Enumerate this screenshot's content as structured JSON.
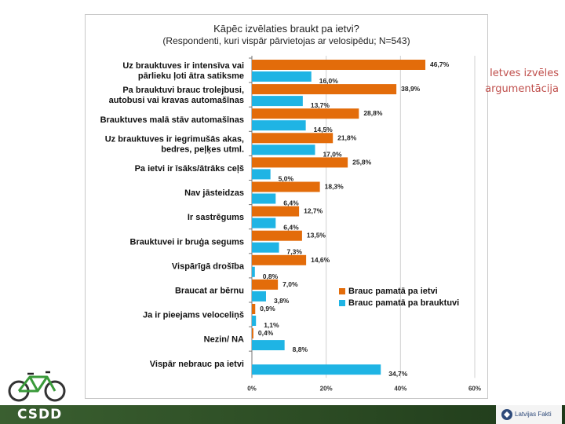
{
  "side_title": {
    "line1": "Ietves izvēles",
    "line2": "argumentācija"
  },
  "footer": {
    "logo_left": "CSDD",
    "logo_right": "Latvijas Fakti"
  },
  "colors": {
    "series1": "#e36c0a",
    "series2": "#1fb4e4",
    "footer": "#2c4c24",
    "side_title": "#c0504d"
  },
  "icons": {
    "bike": "bicycle-icon",
    "logo_mark": "latvijas-fakti-mark-icon"
  },
  "chart_data": {
    "type": "bar",
    "orientation": "horizontal",
    "title": "Kāpēc izvēlaties braukt pa ietvi?",
    "subtitle": "(Respondenti, kuri vispār pārvietojas ar velosipēdu; N=543)",
    "categories": [
      [
        "Uz brauktuves ir intensīva vai",
        "pārlieku ļoti ātra satiksme"
      ],
      [
        "Pa brauktuvi brauc trolejbusi,",
        "autobusi vai kravas automašīnas"
      ],
      [
        "Brauktuves malā stāv automašīnas"
      ],
      [
        "Uz brauktuves ir iegrimušās akas,",
        "bedres, peļķes utml."
      ],
      [
        "Pa ietvi ir īsāks/ātrāks ceļš"
      ],
      [
        "Nav jāsteidzas"
      ],
      [
        "Ir sastrēgums"
      ],
      [
        "Brauktuvei ir bruģa segums"
      ],
      [
        "Vispārīgā drošība"
      ],
      [
        "Braucat ar bērnu"
      ],
      [
        "Ja ir pieejams veloceliņš"
      ],
      [
        "Nezin/ NA"
      ],
      [
        "Vispār nebrauc pa ietvi"
      ]
    ],
    "series": [
      {
        "name": "Brauc pamatā pa ietvi",
        "values": [
          46.7,
          38.9,
          28.8,
          21.8,
          25.8,
          18.3,
          12.7,
          13.5,
          14.6,
          7.0,
          0.9,
          0.4,
          null
        ],
        "labels": [
          "46,7%",
          "38,9%",
          "28,8%",
          "21,8%",
          "25,8%",
          "18,3%",
          "12,7%",
          "13,5%",
          "14,6%",
          "7,0%",
          "0,9%",
          "0,4%",
          ""
        ]
      },
      {
        "name": "Brauc pamatā pa brauktuvi",
        "values": [
          16.0,
          13.7,
          14.5,
          17.0,
          5.0,
          6.4,
          6.4,
          7.3,
          0.8,
          3.8,
          1.1,
          8.8,
          34.7
        ],
        "labels": [
          "16,0%",
          "13,7%",
          "14,5%",
          "17,0%",
          "5,0%",
          "6,4%",
          "6,4%",
          "7,3%",
          "0,8%",
          "3,8%",
          "1,1%",
          "8,8%",
          "34,7%"
        ]
      }
    ],
    "xlim": [
      0,
      60
    ],
    "xticks": [
      "0%",
      "20%",
      "40%",
      "60%"
    ],
    "grid": true,
    "legend_position": "bottom-right"
  }
}
